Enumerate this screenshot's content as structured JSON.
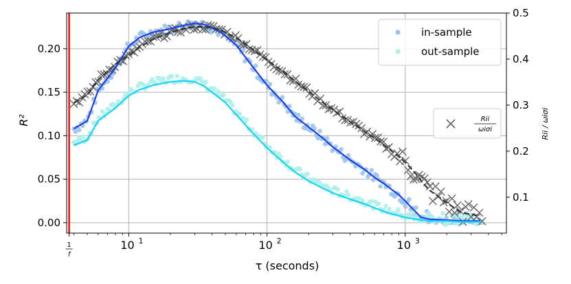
{
  "chart_data": {
    "type": "line",
    "xlabel": "τ (seconds)",
    "ylabel_left": "R²",
    "ylabel_right": "Rii / ωiσi",
    "x_scale": "log",
    "xlim": [
      3.55,
      5400
    ],
    "ylim_left": [
      -0.012,
      0.241
    ],
    "ylim_right": [
      0.022,
      0.5
    ],
    "grid": true,
    "vline": {
      "x": 3.7,
      "color": "#ee1111",
      "label_num": "1",
      "label_den": "f"
    },
    "x_ticks": [
      {
        "value": 10,
        "base": "10",
        "exp": "1"
      },
      {
        "value": 100,
        "base": "10",
        "exp": "2"
      },
      {
        "value": 1000,
        "base": "10",
        "exp": "3"
      }
    ],
    "y_ticks_left": [
      "0.00",
      "0.05",
      "0.10",
      "0.15",
      "0.20"
    ],
    "y_ticks_right": [
      "0.1",
      "0.2",
      "0.3",
      "0.4",
      "0.5"
    ],
    "legend_top": [
      {
        "label": "in-sample",
        "color": "#9cc3ee"
      },
      {
        "label": "out-sample",
        "color": "#afeeea"
      }
    ],
    "legend_right": {
      "marker": "×",
      "color": "#666666",
      "num": "Rii",
      "den": "ωiσi"
    },
    "series": [
      {
        "name": "in-sample fit",
        "axis": "left",
        "color": "#1a3ee8",
        "x": [
          4,
          5,
          6,
          8,
          10,
          12,
          15,
          20,
          25,
          30,
          35,
          40,
          45,
          50,
          60,
          70,
          80,
          100,
          130,
          160,
          200,
          250,
          300,
          400,
          500,
          600,
          700,
          800,
          900,
          1000,
          1100,
          1200,
          1300,
          1500,
          2000,
          2500,
          3000,
          3500
        ],
        "values": [
          0.108,
          0.117,
          0.152,
          0.178,
          0.203,
          0.213,
          0.219,
          0.223,
          0.227,
          0.229,
          0.228,
          0.224,
          0.22,
          0.215,
          0.204,
          0.19,
          0.178,
          0.158,
          0.139,
          0.122,
          0.11,
          0.098,
          0.087,
          0.072,
          0.062,
          0.052,
          0.045,
          0.038,
          0.032,
          0.025,
          0.018,
          0.012,
          0.006,
          0.004,
          0.003,
          0.002,
          0.002,
          0.002
        ]
      },
      {
        "name": "out-sample fit",
        "axis": "left",
        "color": "#17d3f5",
        "x": [
          4,
          5,
          6,
          8,
          10,
          12,
          15,
          20,
          25,
          30,
          35,
          40,
          50,
          60,
          80,
          100,
          130,
          160,
          200,
          250,
          300,
          400,
          500,
          600,
          700,
          800,
          900,
          1000,
          1100,
          1200,
          1300,
          1500,
          2000,
          2500,
          3000,
          3500
        ],
        "values": [
          0.089,
          0.095,
          0.117,
          0.132,
          0.146,
          0.153,
          0.158,
          0.162,
          0.163,
          0.162,
          0.157,
          0.15,
          0.138,
          0.124,
          0.102,
          0.086,
          0.07,
          0.058,
          0.048,
          0.04,
          0.034,
          0.027,
          0.022,
          0.017,
          0.013,
          0.01,
          0.008,
          0.006,
          0.005,
          0.004,
          0.003,
          0.002,
          0.002,
          0.001,
          0.001,
          0.001
        ]
      },
      {
        "name": "Rii/ωiσi fit",
        "axis": "right",
        "color": "#333333",
        "dashed": true,
        "x": [
          4,
          5,
          6,
          8,
          10,
          12,
          15,
          20,
          25,
          30,
          35,
          40,
          45,
          50,
          60,
          70,
          80,
          100,
          130,
          160,
          200,
          250,
          300,
          400,
          500,
          600,
          700,
          800,
          900,
          1000,
          1100,
          1200,
          1300,
          1500,
          2000,
          2500,
          3000,
          3500
        ],
        "values": [
          0.305,
          0.322,
          0.355,
          0.389,
          0.408,
          0.426,
          0.443,
          0.458,
          0.466,
          0.47,
          0.47,
          0.468,
          0.464,
          0.458,
          0.446,
          0.432,
          0.42,
          0.398,
          0.374,
          0.352,
          0.33,
          0.307,
          0.29,
          0.264,
          0.244,
          0.228,
          0.214,
          0.2,
          0.188,
          0.176,
          0.163,
          0.15,
          0.136,
          0.115,
          0.088,
          0.068,
          0.062,
          0.06
        ]
      }
    ]
  }
}
